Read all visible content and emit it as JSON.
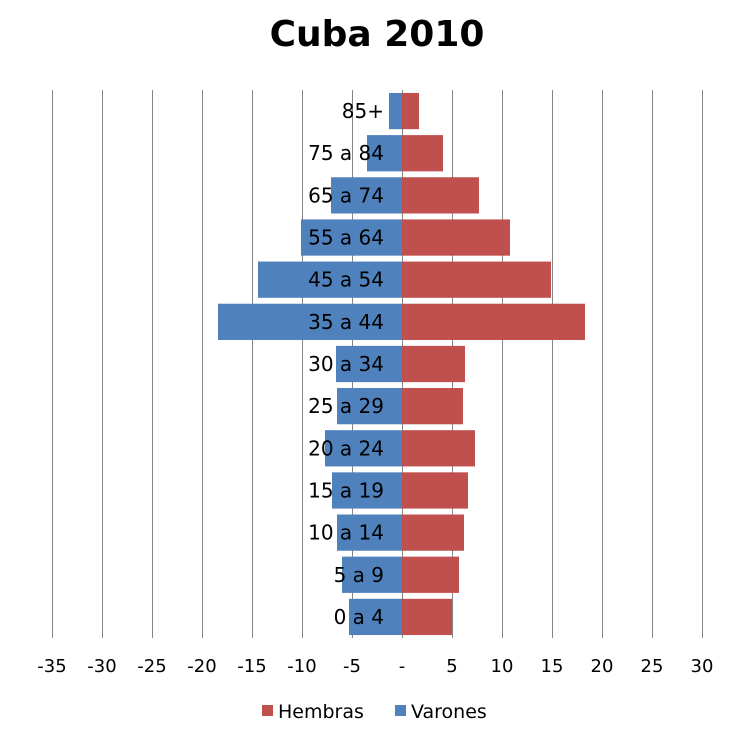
{
  "chart_data": {
    "type": "bar",
    "orientation": "horizontal",
    "title": "Cuba 2010",
    "categories": [
      "0 a 4",
      "5 a 9",
      "10 a 14",
      "15 a 19",
      "20 a 24",
      "25 a 29",
      "30 a 34",
      "35 a 44",
      "45 a 54",
      "55 a 64",
      "65 a 74",
      "75 a 84",
      "85+"
    ],
    "series": [
      {
        "name": "Hembras",
        "color": "#c0504d",
        "values": [
          5.0,
          5.7,
          6.2,
          6.6,
          7.3,
          6.1,
          6.3,
          18.3,
          14.9,
          10.8,
          7.7,
          4.1,
          1.7
        ]
      },
      {
        "name": "Varones",
        "color": "#4f81bd",
        "values": [
          -5.3,
          -6.0,
          -6.5,
          -7.0,
          -7.7,
          -6.5,
          -6.6,
          -18.4,
          -14.4,
          -10.1,
          -7.1,
          -3.5,
          -1.3
        ]
      }
    ],
    "xlim": [
      -35,
      30
    ],
    "x_ticks": [
      "-35",
      "-30",
      "-25",
      "-20",
      "-15",
      "-10",
      "-5",
      "-",
      "5",
      "10",
      "15",
      "20",
      "25",
      "30"
    ],
    "gridlines": "vertical",
    "legend": {
      "position": "bottom",
      "entries": [
        "Hembras",
        "Varones"
      ]
    }
  }
}
